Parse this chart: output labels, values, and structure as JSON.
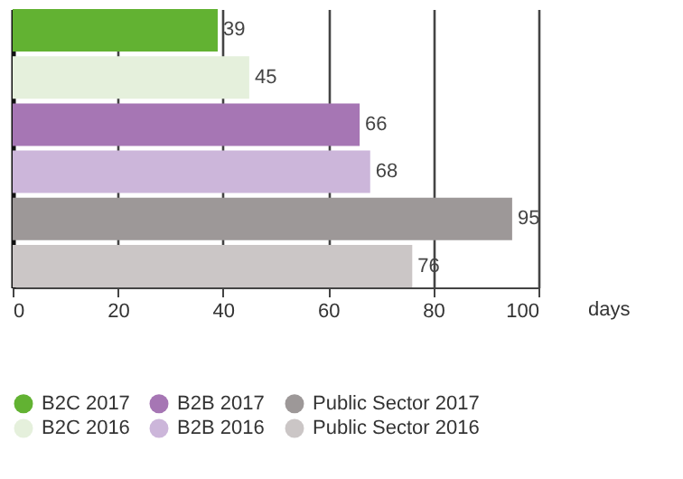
{
  "chart_data": {
    "type": "bar",
    "orientation": "horizontal",
    "categories": [
      null,
      null,
      null,
      null,
      null,
      null
    ],
    "xlabel": "days",
    "xlim": [
      0,
      100
    ],
    "xticks": [
      0,
      20,
      40,
      60,
      80,
      100
    ],
    "grid": "x",
    "legend": "bottom",
    "data_labels": true,
    "series": [
      {
        "name": "B2C 2017",
        "color": "#62b232",
        "values": [
          39,
          null,
          null,
          null,
          null,
          null
        ]
      },
      {
        "name": "B2C 2016",
        "color": "#e5f0dc",
        "values": [
          null,
          45,
          null,
          null,
          null,
          null
        ]
      },
      {
        "name": "B2B 2017",
        "color": "#a676b4",
        "values": [
          null,
          null,
          66,
          null,
          null,
          null
        ]
      },
      {
        "name": "B2B 2016",
        "color": "#ccb6da",
        "values": [
          null,
          null,
          null,
          68,
          null,
          null
        ]
      },
      {
        "name": "Public Sector 2017",
        "color": "#9d9898",
        "values": [
          null,
          null,
          null,
          null,
          95,
          null
        ]
      },
      {
        "name": "Public Sector 2016",
        "color": "#cbc6c6",
        "values": [
          null,
          null,
          null,
          null,
          null,
          76
        ]
      }
    ]
  }
}
